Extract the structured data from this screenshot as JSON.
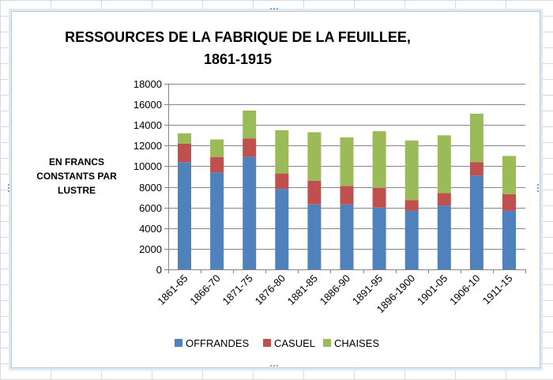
{
  "chart_data": {
    "type": "bar",
    "stacked": true,
    "title_lines": [
      "RESSOURCES DE LA FABRIQUE DE LA FEUILLEE,",
      "1861-1915"
    ],
    "ylabel_lines": [
      "EN FRANCS",
      "CONSTANTS PAR",
      "LUSTRE"
    ],
    "xlabel": "",
    "ylim": [
      0,
      18000
    ],
    "yticks": [
      "0",
      "2000",
      "4000",
      "6000",
      "8000",
      "10000",
      "12000",
      "14000",
      "16000",
      "18000"
    ],
    "ytick_values": [
      0,
      2000,
      4000,
      6000,
      8000,
      10000,
      12000,
      14000,
      16000,
      18000
    ],
    "grid": true,
    "legend_position": "bottom",
    "categories": [
      "1861-65",
      "1866-70",
      "1871-75",
      "1876-80",
      "1881-85",
      "1886-90",
      "1891-95",
      "1896-1900",
      "1901-05",
      "1906-10",
      "1911-15"
    ],
    "series": [
      {
        "name": "OFFRANDES",
        "color": "#4f81bd",
        "values": [
          10400,
          9400,
          10900,
          7800,
          6300,
          6300,
          6000,
          5700,
          6200,
          9100,
          5700
        ]
      },
      {
        "name": "CASUEL",
        "color": "#c0504d",
        "values": [
          1800,
          1500,
          1800,
          1500,
          2300,
          1800,
          1900,
          1000,
          1200,
          1300,
          1600
        ]
      },
      {
        "name": "CHAISES",
        "color": "#9bbb59",
        "values": [
          1000,
          1700,
          2700,
          4200,
          4700,
          4700,
          5500,
          5800,
          5600,
          4700,
          3700
        ]
      }
    ]
  }
}
